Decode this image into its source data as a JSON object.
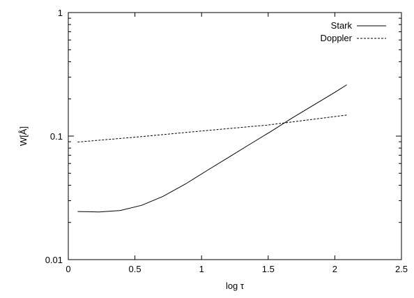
{
  "chart_data": {
    "type": "line",
    "xlabel": "log τ",
    "ylabel": "W[Å]",
    "xlim": [
      0,
      2.5
    ],
    "ylim": [
      0.01,
      1
    ],
    "yscale": "log",
    "grid": false,
    "legend_position": "top-right",
    "x_ticks": [
      0,
      0.5,
      1,
      1.5,
      2,
      2.5
    ],
    "x_tick_labels": [
      "0",
      "0.5",
      "1",
      "1.5",
      "2",
      "2.5"
    ],
    "y_ticks": [
      0.01,
      0.1,
      1
    ],
    "y_tick_labels": [
      "0.01",
      "0.1",
      "1"
    ],
    "series": [
      {
        "name": "Stark",
        "style": "solid",
        "color": "#000000",
        "x": [
          0.07,
          0.23,
          0.39,
          0.55,
          0.71,
          0.88,
          1.04,
          1.2,
          1.36,
          1.52,
          1.68,
          1.84,
          2.0,
          2.09
        ],
        "y": [
          0.0245,
          0.0243,
          0.025,
          0.0275,
          0.0325,
          0.041,
          0.0525,
          0.067,
          0.0855,
          0.109,
          0.14,
          0.178,
          0.226,
          0.26
        ]
      },
      {
        "name": "Doppler",
        "style": "dashed",
        "color": "#000000",
        "x": [
          0.07,
          0.5,
          1.0,
          1.5,
          2.09
        ],
        "y": [
          0.0895,
          0.098,
          0.11,
          0.123,
          0.148
        ]
      }
    ]
  }
}
